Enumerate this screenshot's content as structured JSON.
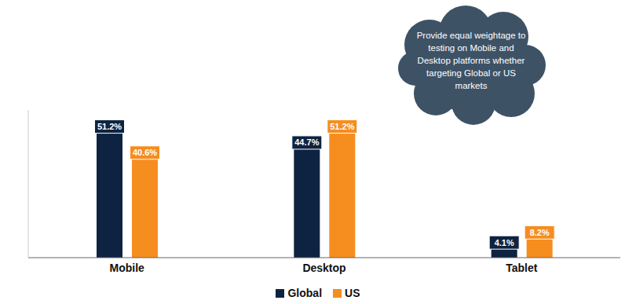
{
  "chart_data": {
    "type": "bar",
    "categories": [
      "Mobile",
      "Desktop",
      "Tablet"
    ],
    "series": [
      {
        "name": "Global",
        "color": "#0e2341",
        "values": [
          51.2,
          44.7,
          4.1
        ],
        "value_labels": [
          "51.2%",
          "44.7%",
          "4.1%"
        ]
      },
      {
        "name": "US",
        "color": "#f68d1f",
        "values": [
          40.6,
          51.2,
          8.2
        ],
        "value_labels": [
          "40.6%",
          "51.2%",
          "8.2%"
        ]
      }
    ],
    "ylim": [
      0,
      60
    ],
    "tick_labels": "x",
    "data_labels": true,
    "grid": false,
    "legend": "bottom",
    "annotation": "Provide equal weightage to testing on Mobile and Desktop platforms whether targeting Global or US markets"
  }
}
